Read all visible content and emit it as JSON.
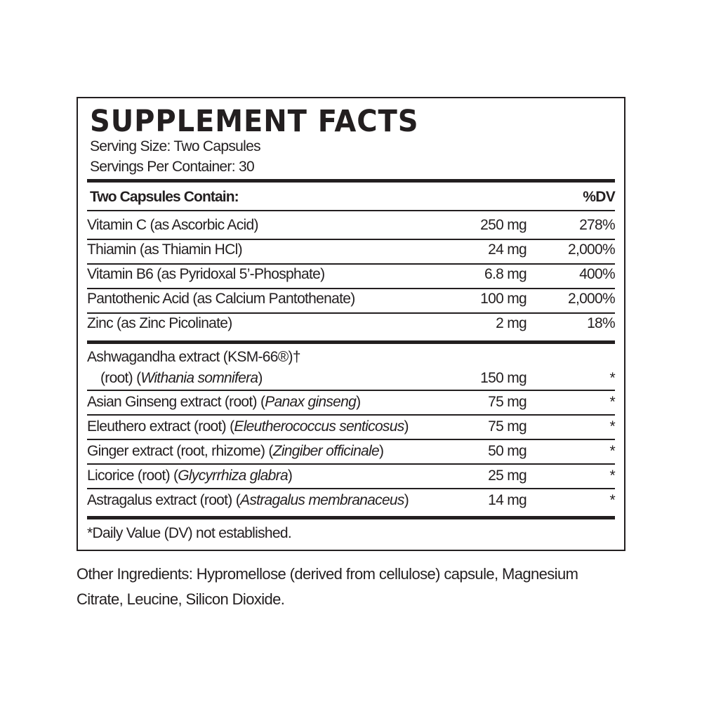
{
  "title": "SUPPLEMENT FACTS",
  "serving_size": "Serving Size: Two Capsules",
  "servings_per_container": "Servings Per Container: 30",
  "header": {
    "label": "Two Capsules Contain:",
    "dv": "%DV"
  },
  "vitamins": [
    {
      "name": "Vitamin C (as Ascorbic Acid)",
      "amount": "250 mg",
      "dv": "278%"
    },
    {
      "name": "Thiamin (as Thiamin HCl)",
      "amount": "24 mg",
      "dv": "2,000%"
    },
    {
      "name": "Vitamin B6 (as Pyridoxal 5’-Phosphate)",
      "amount": "6.8 mg",
      "dv": "400%"
    },
    {
      "name": "Pantothenic Acid (as Calcium Pantothenate)",
      "amount": "100 mg",
      "dv": "2,000%"
    },
    {
      "name": "Zinc (as Zinc Picolinate)",
      "amount": "2 mg",
      "dv": "18%"
    }
  ],
  "ashwagandha": {
    "line1": "Ashwagandha extract (KSM-66®)†",
    "prefix": "(root) (",
    "italic": "Withania somnifera",
    "suffix": ")",
    "amount": "150 mg",
    "dv": "*"
  },
  "herbs": [
    {
      "prefix": "Asian Ginseng extract (root) (",
      "italic": "Panax ginseng",
      "suffix": ")",
      "amount": "75 mg",
      "dv": "*"
    },
    {
      "prefix": "Eleuthero extract (root) (",
      "italic": "Eleutherococcus senticosus",
      "suffix": ")",
      "amount": "75 mg",
      "dv": "*"
    },
    {
      "prefix": "Ginger extract (root, rhizome) (",
      "italic": "Zingiber officinale",
      "suffix": ")",
      "amount": "50 mg",
      "dv": "*"
    },
    {
      "prefix": "Licorice (root) (",
      "italic": "Glycyrrhiza glabra",
      "suffix": ")",
      "amount": "25 mg",
      "dv": "*"
    },
    {
      "prefix": "Astragalus extract (root) (",
      "italic": "Astragalus membranaceus",
      "suffix": ")",
      "amount": "14 mg",
      "dv": "*"
    }
  ],
  "footnote": "*Daily Value (DV) not established.",
  "other_ingredients": "Other Ingredients: Hypromellose (derived from cellulose) capsule, Magnesium Citrate, Leucine, Silicon Dioxide."
}
